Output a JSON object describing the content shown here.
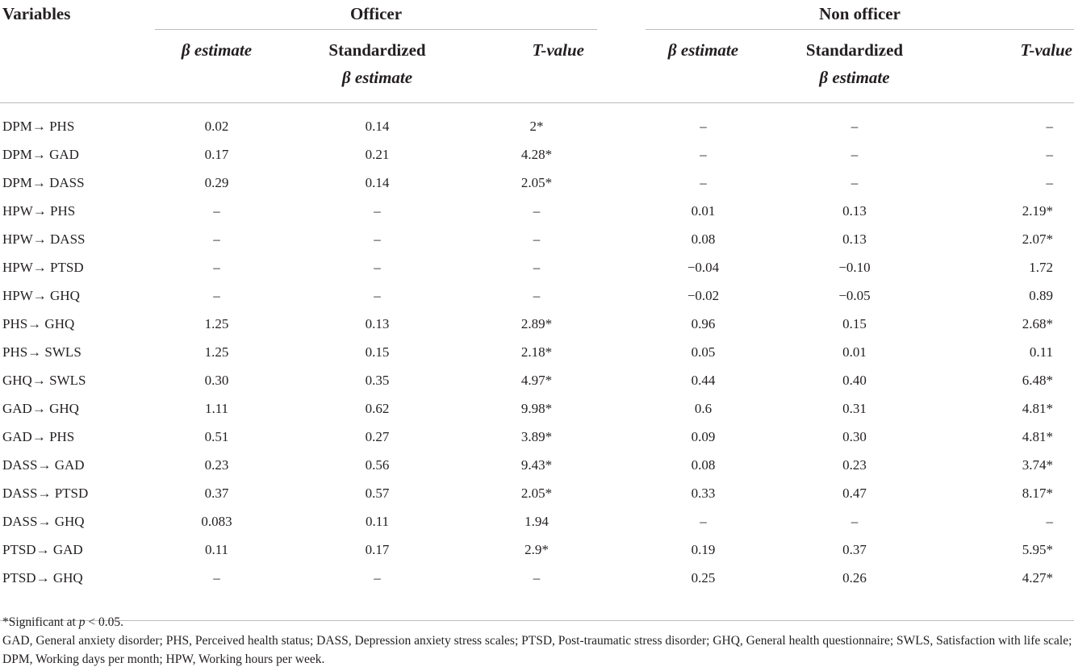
{
  "headers": {
    "variables": "Variables",
    "officer": "Officer",
    "non_officer": "Non officer",
    "beta": "β estimate",
    "standardized_line1": "Standardized",
    "standardized_line2": "β estimate",
    "t_value": "T-value"
  },
  "rows": [
    {
      "var": "DPM→ PHS",
      "o": [
        "0.02",
        "0.14",
        "2*"
      ],
      "n": [
        "–",
        "–",
        "–"
      ]
    },
    {
      "var": "DPM→ GAD",
      "o": [
        "0.17",
        "0.21",
        "4.28*"
      ],
      "n": [
        "–",
        "–",
        "–"
      ]
    },
    {
      "var": "DPM→ DASS",
      "o": [
        "0.29",
        "0.14",
        "2.05*"
      ],
      "n": [
        "–",
        "–",
        "–"
      ]
    },
    {
      "var": "HPW→ PHS",
      "o": [
        "–",
        "–",
        "–"
      ],
      "n": [
        "0.01",
        "0.13",
        "2.19*"
      ]
    },
    {
      "var": "HPW→ DASS",
      "o": [
        "–",
        "–",
        "–"
      ],
      "n": [
        "0.08",
        "0.13",
        "2.07*"
      ]
    },
    {
      "var": "HPW→ PTSD",
      "o": [
        "–",
        "–",
        "–"
      ],
      "n": [
        "−0.04",
        "−0.10",
        "1.72"
      ]
    },
    {
      "var": "HPW→ GHQ",
      "o": [
        "–",
        "–",
        "–"
      ],
      "n": [
        "−0.02",
        "−0.05",
        "0.89"
      ]
    },
    {
      "var": "PHS→ GHQ",
      "o": [
        "1.25",
        "0.13",
        "2.89*"
      ],
      "n": [
        "0.96",
        "0.15",
        "2.68*"
      ]
    },
    {
      "var": "PHS→ SWLS",
      "o": [
        "1.25",
        "0.15",
        "2.18*"
      ],
      "n": [
        "0.05",
        "0.01",
        "0.11"
      ]
    },
    {
      "var": "GHQ→ SWLS",
      "o": [
        "0.30",
        "0.35",
        "4.97*"
      ],
      "n": [
        "0.44",
        "0.40",
        "6.48*"
      ]
    },
    {
      "var": "GAD→ GHQ",
      "o": [
        "1.11",
        "0.62",
        "9.98*"
      ],
      "n": [
        "0.6",
        "0.31",
        "4.81*"
      ]
    },
    {
      "var": "GAD→ PHS",
      "o": [
        "0.51",
        "0.27",
        "3.89*"
      ],
      "n": [
        "0.09",
        "0.30",
        "4.81*"
      ]
    },
    {
      "var": "DASS→ GAD",
      "o": [
        "0.23",
        "0.56",
        "9.43*"
      ],
      "n": [
        "0.08",
        "0.23",
        "3.74*"
      ]
    },
    {
      "var": "DASS→ PTSD",
      "o": [
        "0.37",
        "0.57",
        "2.05*"
      ],
      "n": [
        "0.33",
        "0.47",
        "8.17*"
      ]
    },
    {
      "var": "DASS→ GHQ",
      "o": [
        "0.083",
        "0.11",
        "1.94"
      ],
      "n": [
        "–",
        "–",
        "–"
      ]
    },
    {
      "var": "PTSD→ GAD",
      "o": [
        "0.11",
        "0.17",
        "2.9*"
      ],
      "n": [
        "0.19",
        "0.37",
        "5.95*"
      ]
    },
    {
      "var": "PTSD→ GHQ",
      "o": [
        "–",
        "–",
        "–"
      ],
      "n": [
        "0.25",
        "0.26",
        "4.27*"
      ]
    }
  ],
  "footnotes": {
    "significance": "*Significant at p < 0.05.",
    "abbreviations": "GAD, General anxiety disorder; PHS, Perceived health status; DASS, Depression anxiety stress scales; PTSD, Post-traumatic stress disorder; GHQ, General health questionnaire; SWLS, Satisfaction with life scale; DPM, Working days per month; HPW, Working hours per week."
  }
}
